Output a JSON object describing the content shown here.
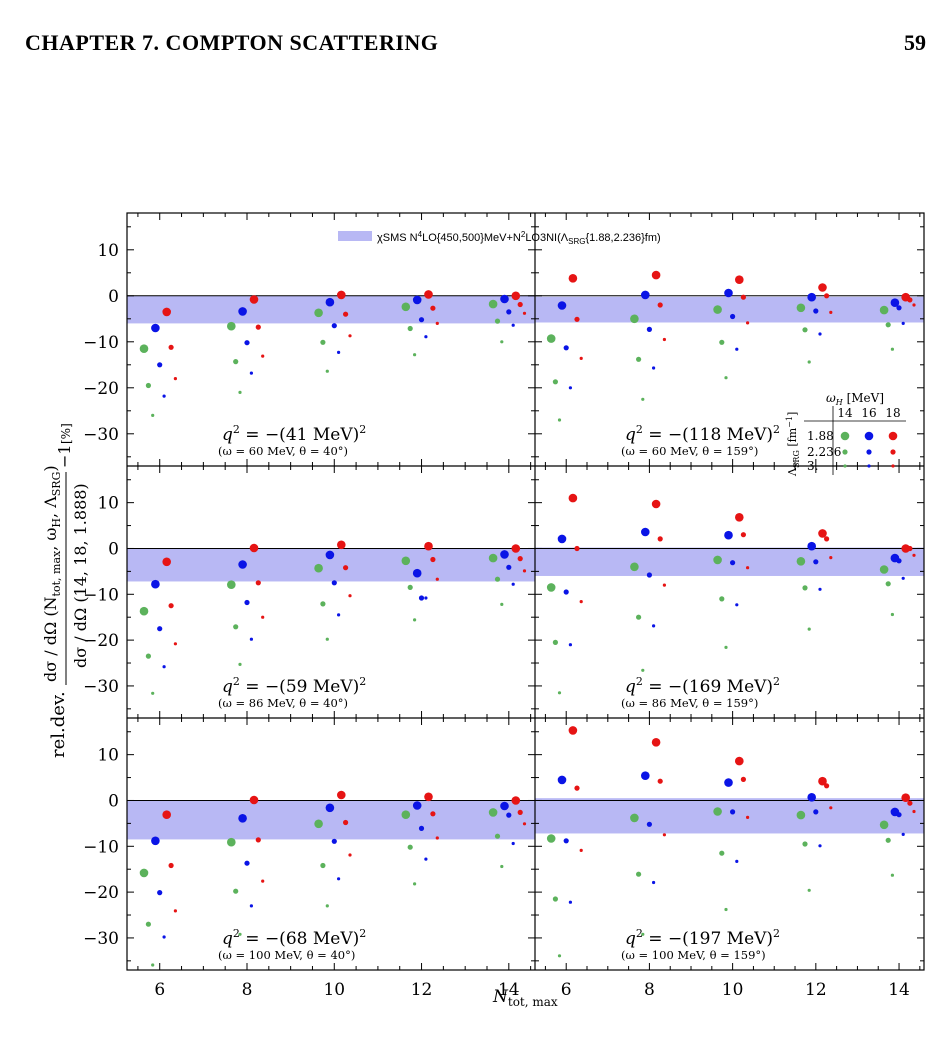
{
  "running_head": {
    "chapter": "CHAPTER 7.  COMPTON SCATTERING",
    "page_number": "59"
  },
  "figure": {
    "y_axis_label": {
      "prefix": "rel.dev.",
      "numerator_main": "dσ / dΩ (N",
      "numerator_sub": "tot, max",
      "numerator_rest": ", ω",
      "numerator_sub2": "H",
      "numerator_rest2": ", Λ",
      "numerator_sub3": "SRG",
      "numerator_end": ")",
      "denominator": "dσ / dΩ (14, 18, 1.888)",
      "suffix": "−1",
      "unit": "[%]"
    },
    "x_axis_label": {
      "main": "N",
      "sub": "tot, max"
    },
    "band_legend": {
      "label_pre": "χSMS N",
      "label_sup": "4",
      "label_mid": "LO{450,500}MeV+N",
      "label_sup2": "2",
      "label_mid2": "LO3NI(Λ",
      "label_sub": "SRG",
      "label_end": "{1.88,2.236}fm)"
    },
    "marker_legend": {
      "header": "ω",
      "header_sub": "H",
      "header_unit": " [MeV]",
      "columns": [
        "14",
        "16",
        "18"
      ],
      "row_axis_label": "Λ",
      "row_axis_sub": "SRG",
      "row_axis_unit": " [fm",
      "row_axis_sup": "−1",
      "row_axis_end": "]",
      "rows": [
        "1.88",
        "2.236",
        "3."
      ]
    },
    "x_ticks": [
      "6",
      "8",
      "10",
      "12",
      "14"
    ],
    "y_ticks": [
      "10",
      "0",
      "−10",
      "−20",
      "−30"
    ],
    "colors": {
      "w14": "#5cb25c",
      "w16": "#0a14e6",
      "w18": "#e61414",
      "band": "#b8b8f4",
      "line": "#000000"
    },
    "panels": [
      {
        "id": "p1",
        "q2": "−(41 MeV)",
        "kin": "(ω = 60 MeV, θ = 40°)",
        "band": [
          -6,
          0
        ],
        "points": [
          [
            -11.5,
            -7,
            -3.5
          ],
          [
            -19.5,
            -15,
            -11.2
          ],
          [
            -26,
            -21.8,
            -18
          ],
          [
            -6.6,
            -3.4,
            -0.8
          ],
          [
            -14.3,
            -10.2,
            -6.8
          ],
          [
            -21,
            -16.8,
            -13.1
          ],
          [
            -3.7,
            -1.4,
            0.2
          ],
          [
            -10.1,
            -6.5,
            -4
          ],
          [
            -16.4,
            -12.3,
            -8.7
          ],
          [
            -2.4,
            -0.9,
            0.3
          ],
          [
            -7.1,
            -5.2,
            -2.7
          ],
          [
            -12.8,
            -8.9,
            -6
          ],
          [
            -1.8,
            -0.7,
            0
          ],
          [
            -5.5,
            -3.5,
            -1.9
          ],
          [
            -10,
            -6.4,
            -3.8
          ]
        ]
      },
      {
        "id": "p2",
        "q2": "−(118 MeV)",
        "kin": "(ω = 60 MeV, θ = 159°)",
        "band": [
          -5.8,
          -0.2
        ],
        "points": [
          [
            -9.3,
            -2.1,
            3.8
          ],
          [
            -18.7,
            -11.3,
            -5.1
          ],
          [
            -27,
            -20,
            -13.6
          ],
          [
            -5,
            0.2,
            4.5
          ],
          [
            -13.8,
            -7.3,
            -2
          ],
          [
            -22.5,
            -15.7,
            -9.5
          ],
          [
            -3,
            0.6,
            3.5
          ],
          [
            -10.1,
            -4.5,
            -0.3
          ],
          [
            -17.8,
            -11.6,
            -5.9
          ],
          [
            -2.6,
            -0.3,
            1.8
          ],
          [
            -7.4,
            -3.3,
            0
          ],
          [
            -14.4,
            -8.3,
            -3.6
          ],
          [
            -3.1,
            -1.5,
            -0.3
          ],
          [
            -6.3,
            -2.6,
            -0.9
          ],
          [
            -11.6,
            -6,
            -2
          ]
        ]
      },
      {
        "id": "p3",
        "q2": "−(59 MeV)",
        "kin": "(ω = 86 MeV, θ = 40°)",
        "band": [
          -7.2,
          0
        ],
        "points": [
          [
            -13.7,
            -7.8,
            -2.9
          ],
          [
            -23.5,
            -17.5,
            -12.5
          ],
          [
            -31.6,
            -25.8,
            -20.8
          ],
          [
            -7.9,
            -3.5,
            0.1
          ],
          [
            -17.1,
            -11.8,
            -7.5
          ],
          [
            -25.3,
            -19.8,
            -15
          ],
          [
            -4.3,
            -1.4,
            0.8
          ],
          [
            -12.1,
            -7.5,
            -4.2
          ],
          [
            -19.8,
            -14.5,
            -10.3
          ],
          [
            -2.7,
            -5.4,
            0.5
          ],
          [
            -8.5,
            -10.8,
            -2.4
          ],
          [
            -15.6,
            -10.8,
            -6.7
          ],
          [
            -2.1,
            -1.3,
            0
          ],
          [
            -6.7,
            -4.1,
            -2.2
          ],
          [
            -12.2,
            -7.8,
            -4.9
          ]
        ]
      },
      {
        "id": "p4",
        "q2": "−(169 MeV)",
        "kin": "(ω = 86 MeV, θ = 159°)",
        "band": [
          -6,
          0.2
        ],
        "points": [
          [
            -8.5,
            2.1,
            11
          ],
          [
            -20.5,
            -9.5,
            0
          ],
          [
            -31.5,
            -21,
            -11.6
          ],
          [
            -4,
            3.6,
            9.7
          ],
          [
            -15,
            -5.8,
            2.1
          ],
          [
            -26.6,
            -16.9,
            -8
          ],
          [
            -2.5,
            2.9,
            6.8
          ],
          [
            -11,
            -3.1,
            3
          ],
          [
            -21.6,
            -12.3,
            -4.2
          ],
          [
            -2.8,
            0.5,
            3.3
          ],
          [
            -8.6,
            -2.9,
            2.1
          ],
          [
            -17.6,
            -8.9,
            -2
          ],
          [
            -4.6,
            -2.1,
            0
          ],
          [
            -7.7,
            -2.7,
            0
          ],
          [
            -14.4,
            -6.5,
            -1.5
          ]
        ]
      },
      {
        "id": "p5",
        "q2": "−(68 MeV)",
        "kin": "(ω = 100 MeV, θ = 40°)",
        "band": [
          -8.5,
          0
        ],
        "points": [
          [
            -15.8,
            -8.8,
            -3.1
          ],
          [
            -27,
            -20.1,
            -14.2
          ],
          [
            -35.9,
            -29.8,
            -24.1
          ],
          [
            -9.1,
            -3.9,
            0.1
          ],
          [
            -19.8,
            -13.7,
            -8.6
          ],
          [
            -29.2,
            -23,
            -17.6
          ],
          [
            -5.1,
            -1.6,
            1.2
          ],
          [
            -14.2,
            -8.9,
            -4.8
          ],
          [
            -23,
            -17.1,
            -11.9
          ],
          [
            -3.1,
            -1.1,
            0.8
          ],
          [
            -10.2,
            -6.1,
            -2.9
          ],
          [
            -18.2,
            -12.8,
            -8.2
          ],
          [
            -2.6,
            -1.2,
            0
          ],
          [
            -7.8,
            -3.2,
            -2.6
          ],
          [
            -14.4,
            -9.4,
            -5.1
          ]
        ]
      },
      {
        "id": "p6",
        "q2": "−(197 MeV)",
        "kin": "(ω = 100 MeV, θ = 159°)",
        "band": [
          -7.2,
          0.5
        ],
        "points": [
          [
            -8.3,
            4.5,
            15.3
          ],
          [
            -21.5,
            -8.8,
            2.7
          ],
          [
            -33.9,
            -22.2,
            -10.9
          ],
          [
            -3.8,
            5.4,
            12.7
          ],
          [
            -16.1,
            -5.2,
            4.2
          ],
          [
            -29.2,
            -17.9,
            -7.5
          ],
          [
            -2.4,
            3.9,
            8.6
          ],
          [
            -11.5,
            -2.5,
            4.6
          ],
          [
            -23.8,
            -13.3,
            -3.7
          ],
          [
            -3.2,
            0.7,
            4.2
          ],
          [
            -9.5,
            -2.5,
            3.2
          ],
          [
            -19.6,
            -9.9,
            -1.6
          ],
          [
            -5.3,
            -2.5,
            0.6
          ],
          [
            -8.7,
            -3.1,
            -0.6
          ],
          [
            -16.3,
            -7.4,
            -2.4
          ]
        ]
      }
    ]
  }
}
